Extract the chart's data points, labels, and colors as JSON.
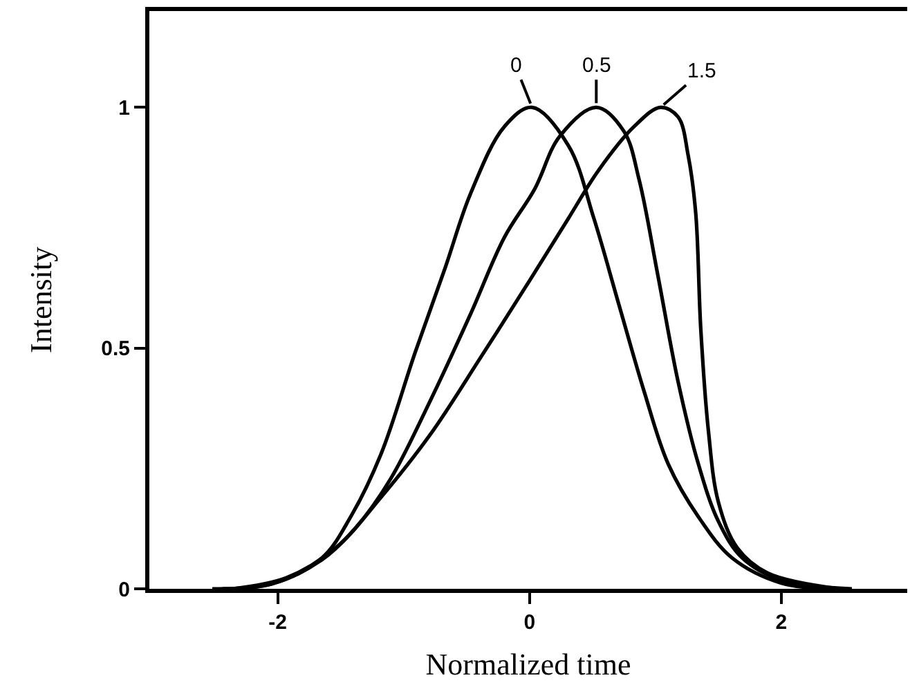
{
  "chart_data": {
    "type": "line",
    "xlabel": "Normalized time",
    "ylabel": "Intensity",
    "xlim": [
      -3.02,
      3.0
    ],
    "ylim": [
      0,
      1.2
    ],
    "xticks": [
      -2,
      0,
      2
    ],
    "yticks": [
      0,
      0.5,
      1
    ],
    "legend": false,
    "marker": "none",
    "line_style": "solid",
    "series": [
      {
        "name": "0",
        "color": "#000000",
        "x": [
          -2.52,
          -2.05,
          -1.65,
          -1.42,
          -1.18,
          -0.91,
          -0.67,
          -0.47,
          -0.2,
          0.02,
          0.31,
          0.51,
          0.71,
          0.91,
          1.1,
          1.34,
          1.61,
          2.0,
          2.4
        ],
        "values": [
          0,
          0.01,
          0.064,
          0.15,
          0.28,
          0.49,
          0.667,
          0.82,
          0.96,
          1.0,
          0.92,
          0.77,
          0.59,
          0.41,
          0.26,
          0.15,
          0.064,
          0.012,
          0
        ]
      },
      {
        "name": "0.5",
        "color": "#000000",
        "x": [
          -2.44,
          -2.05,
          -1.65,
          -1.38,
          -1.1,
          -0.79,
          -0.47,
          -0.2,
          0.04,
          0.24,
          0.53,
          0.75,
          0.87,
          1.02,
          1.18,
          1.34,
          1.5,
          1.69,
          2.0,
          2.56
        ],
        "values": [
          0,
          0.01,
          0.06,
          0.127,
          0.23,
          0.39,
          0.57,
          0.73,
          0.83,
          0.94,
          1.0,
          0.95,
          0.85,
          0.65,
          0.43,
          0.26,
          0.14,
          0.064,
          0.018,
          0
        ]
      },
      {
        "name": "1.5",
        "color": "#000000",
        "x": [
          -2.36,
          -1.93,
          -1.54,
          -1.18,
          -0.79,
          -0.39,
          0,
          0.31,
          0.55,
          0.83,
          1.04,
          1.18,
          1.26,
          1.32,
          1.36,
          1.42,
          1.5,
          1.65,
          1.89,
          2.46
        ],
        "values": [
          0,
          0.023,
          0.085,
          0.19,
          0.32,
          0.48,
          0.64,
          0.77,
          0.87,
          0.96,
          1.0,
          0.98,
          0.9,
          0.78,
          0.54,
          0.33,
          0.18,
          0.085,
          0.033,
          0
        ]
      }
    ]
  }
}
